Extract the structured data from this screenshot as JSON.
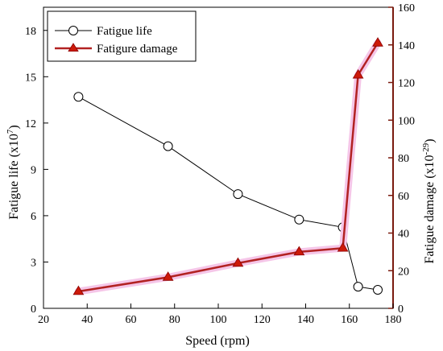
{
  "chart_data": {
    "type": "line",
    "xlabel": "Speed (rpm)",
    "ylabel_left": "Fatigue life (x10",
    "ylabel_left_exp": "7",
    "ylabel_left_close": ")",
    "ylabel_right": "Fatigue damage (x10",
    "ylabel_right_exp": "-29",
    "ylabel_right_close": ")",
    "xlim": [
      20,
      180
    ],
    "xticks": [
      "20",
      "40",
      "60",
      "80",
      "100",
      "120",
      "140",
      "160",
      "180"
    ],
    "ylim_left": [
      0,
      19.5
    ],
    "yticks_left": [
      "0",
      "3",
      "6",
      "9",
      "12",
      "15",
      "18"
    ],
    "ylim_right": [
      0,
      160
    ],
    "yticks_right": [
      "0",
      "20",
      "40",
      "60",
      "80",
      "100",
      "120",
      "140",
      "160"
    ],
    "legend_position": "top-left",
    "series": [
      {
        "name": "Fatigue life",
        "axis": "left",
        "color": "#000000",
        "marker": "open-circle",
        "x": [
          36,
          77,
          109,
          137,
          157,
          164,
          173
        ],
        "y": [
          13.7,
          10.5,
          7.4,
          5.75,
          5.25,
          1.4,
          1.2
        ]
      },
      {
        "name": "Fatigure damage",
        "axis": "right",
        "color": "#b22222",
        "marker": "filled-triangle",
        "x": [
          36,
          77,
          109,
          137,
          157,
          164,
          173
        ],
        "y": [
          9,
          16.5,
          24,
          30,
          32,
          124,
          141
        ]
      }
    ]
  }
}
